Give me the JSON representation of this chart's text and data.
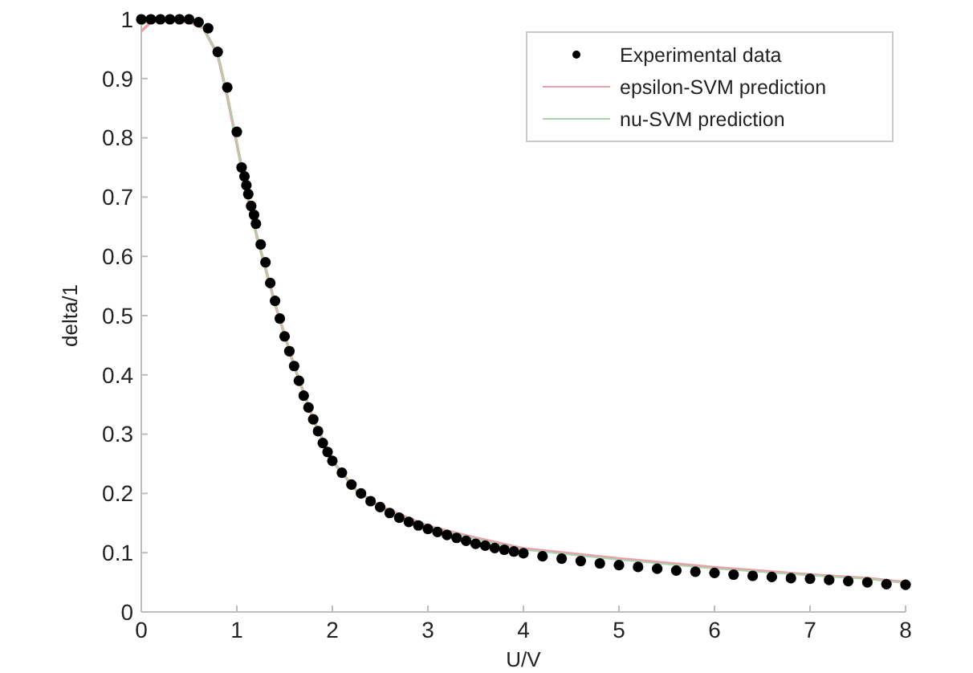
{
  "chart_data": {
    "type": "scatter",
    "xlabel": "U/V",
    "ylabel": "delta/1",
    "xlim": [
      0,
      8
    ],
    "ylim": [
      0,
      1
    ],
    "xticks": [
      0,
      1,
      2,
      3,
      4,
      5,
      6,
      7,
      8
    ],
    "yticks": [
      0,
      0.1,
      0.2,
      0.3,
      0.4,
      0.5,
      0.6,
      0.7,
      0.8,
      0.9,
      1
    ],
    "grid": false,
    "legend": "top right",
    "series": [
      {
        "name": "Experimental data",
        "marker": "circle",
        "color": "#000000",
        "x": [
          0,
          0.1,
          0.2,
          0.3,
          0.4,
          0.5,
          0.6,
          0.7,
          0.8,
          0.9,
          1.0,
          1.05,
          1.08,
          1.1,
          1.12,
          1.15,
          1.18,
          1.2,
          1.25,
          1.3,
          1.35,
          1.4,
          1.45,
          1.5,
          1.55,
          1.6,
          1.65,
          1.7,
          1.75,
          1.8,
          1.85,
          1.9,
          1.95,
          2.0,
          2.1,
          2.2,
          2.3,
          2.4,
          2.5,
          2.6,
          2.7,
          2.8,
          2.9,
          3.0,
          3.1,
          3.2,
          3.3,
          3.4,
          3.5,
          3.6,
          3.7,
          3.8,
          3.9,
          4.0,
          4.2,
          4.4,
          4.6,
          4.8,
          5.0,
          5.2,
          5.4,
          5.6,
          5.8,
          6.0,
          6.2,
          6.4,
          6.6,
          6.8,
          7.0,
          7.2,
          7.4,
          7.6,
          7.8,
          8.0
        ],
        "values": [
          1,
          1,
          1,
          1,
          1,
          1,
          0.995,
          0.985,
          0.945,
          0.885,
          0.81,
          0.75,
          0.735,
          0.72,
          0.705,
          0.685,
          0.67,
          0.655,
          0.62,
          0.59,
          0.555,
          0.525,
          0.495,
          0.465,
          0.44,
          0.415,
          0.39,
          0.365,
          0.345,
          0.325,
          0.305,
          0.285,
          0.27,
          0.255,
          0.235,
          0.215,
          0.2,
          0.187,
          0.177,
          0.167,
          0.159,
          0.152,
          0.146,
          0.14,
          0.135,
          0.13,
          0.125,
          0.12,
          0.115,
          0.112,
          0.108,
          0.105,
          0.102,
          0.099,
          0.094,
          0.09,
          0.086,
          0.082,
          0.079,
          0.076,
          0.073,
          0.07,
          0.068,
          0.066,
          0.063,
          0.061,
          0.059,
          0.057,
          0.056,
          0.054,
          0.052,
          0.05,
          0.047,
          0.046
        ]
      },
      {
        "name": "epsilon-SVM prediction",
        "type": "line",
        "marker": "none",
        "line_style": "solid",
        "color": "#e8a0aa",
        "x": [
          0,
          0.1,
          0.3,
          0.5,
          0.65,
          0.8,
          0.9,
          1.0,
          1.1,
          1.2,
          1.4,
          1.6,
          1.8,
          2,
          2.25,
          2.5,
          3,
          3.5,
          4,
          5,
          6,
          7,
          7.6,
          8
        ],
        "values": [
          0.98,
          0.995,
          1,
          0.995,
          0.985,
          0.94,
          0.87,
          0.79,
          0.71,
          0.64,
          0.52,
          0.415,
          0.325,
          0.255,
          0.205,
          0.178,
          0.145,
          0.125,
          0.107,
          0.09,
          0.075,
          0.063,
          0.057,
          0.05
        ]
      },
      {
        "name": "nu-SVM prediction",
        "type": "line",
        "marker": "none",
        "line_style": "solid",
        "color": "#a8d4a8",
        "x": [
          0,
          0.1,
          0.3,
          0.5,
          0.65,
          0.8,
          0.9,
          1.0,
          1.1,
          1.2,
          1.4,
          1.6,
          1.8,
          2,
          2.25,
          2.5,
          3,
          3.5,
          4,
          5,
          6,
          7,
          7.6,
          8
        ],
        "values": [
          0.99,
          0.998,
          1,
          0.997,
          0.985,
          0.94,
          0.87,
          0.79,
          0.71,
          0.64,
          0.52,
          0.415,
          0.325,
          0.255,
          0.205,
          0.176,
          0.143,
          0.123,
          0.105,
          0.088,
          0.073,
          0.062,
          0.056,
          0.049
        ]
      }
    ]
  }
}
